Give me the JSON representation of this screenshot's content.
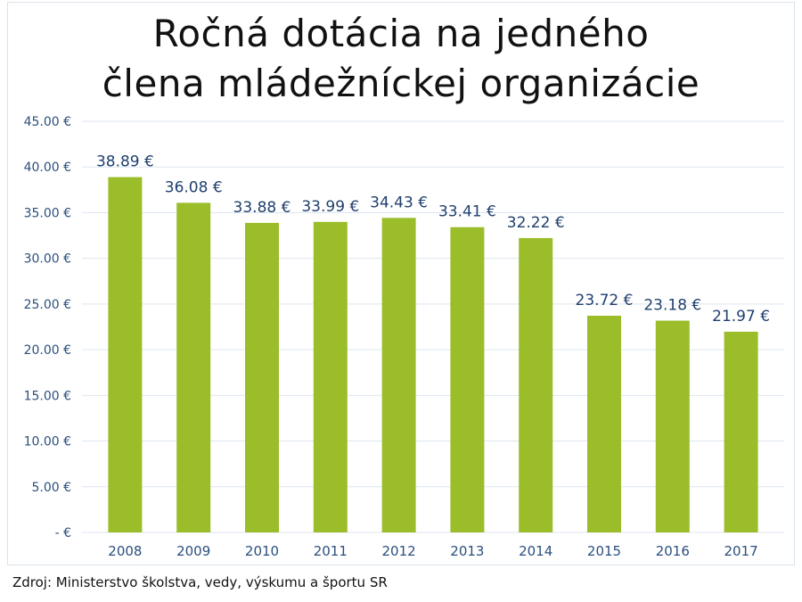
{
  "title": {
    "line1": "Ročná dotácia na jedného",
    "line2": "člena mládežníckej organizácie"
  },
  "source": "Zdroj: Ministerstvo školstva, vedy, výskumu a športu SR",
  "colors": {
    "bar": "#9bbd2a",
    "grid": "#dde6f0",
    "text_axis": "#2b4f7e",
    "data_label": "#1f3f6e"
  },
  "chart_data": {
    "type": "bar",
    "categories": [
      "2008",
      "2009",
      "2010",
      "2011",
      "2012",
      "2013",
      "2014",
      "2015",
      "2016",
      "2017"
    ],
    "values": [
      38.89,
      36.08,
      33.88,
      33.99,
      34.43,
      33.41,
      32.22,
      23.72,
      23.18,
      21.97
    ],
    "data_labels": [
      "38.89 €",
      "36.08 €",
      "33.88 €",
      "33.99 €",
      "34.43 €",
      "33.41 €",
      "32.22 €",
      "23.72 €",
      "23.18 €",
      "21.97 €"
    ],
    "y_ticks": [
      0,
      5,
      10,
      15,
      20,
      25,
      30,
      35,
      40,
      45
    ],
    "y_tick_labels": [
      "-   €",
      "5.00 €",
      "10.00 €",
      "15.00 €",
      "20.00 €",
      "25.00 €",
      "30.00 €",
      "35.00 €",
      "40.00 €",
      "45.00 €"
    ],
    "ylim": [
      0,
      45
    ],
    "grid": true,
    "legend": false
  }
}
